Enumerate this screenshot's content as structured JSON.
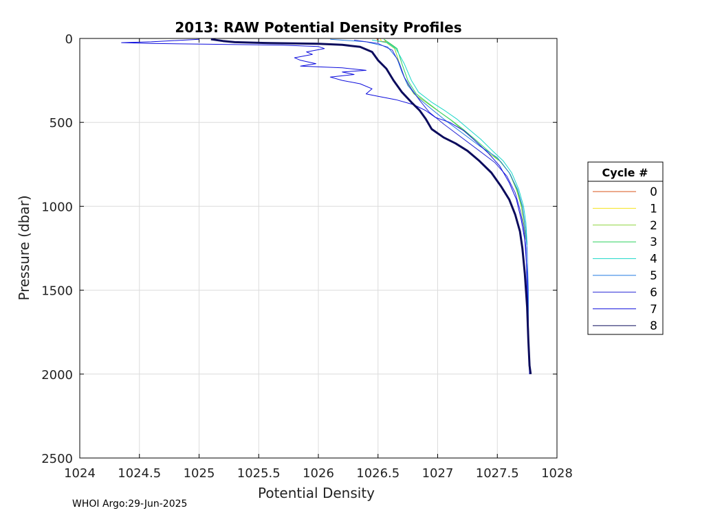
{
  "footer": "WHOI Argo:29-Jun-2025",
  "chart_data": {
    "type": "line",
    "title": "2013: RAW Potential Density Profiles",
    "xlabel": "Potential Density",
    "ylabel": "Pressure (dbar)",
    "xlim": [
      1024,
      1028
    ],
    "ylim": [
      0,
      2500
    ],
    "y_reversed": true,
    "grid": true,
    "xticks": [
      1024,
      1024.5,
      1025,
      1025.5,
      1026,
      1026.5,
      1027,
      1027.5,
      1028
    ],
    "xtick_labels": [
      "1024",
      "1024.5",
      "1025",
      "1025.5",
      "1026",
      "1026.5",
      "1027",
      "1027.5",
      "1028"
    ],
    "yticks": [
      0,
      500,
      1000,
      1500,
      2000,
      2500
    ],
    "ytick_labels": [
      "0",
      "500",
      "1000",
      "1500",
      "2000",
      "2500"
    ],
    "legend": {
      "title": "Cycle #",
      "placement": "right-outside"
    },
    "series": [
      {
        "name": "0",
        "color": "#d95319",
        "width": 1,
        "points": [
          [
            1026.49,
            2
          ],
          [
            1026.5,
            15
          ],
          [
            1026.56,
            20
          ],
          [
            1026.6,
            30
          ],
          [
            1026.64,
            50
          ]
        ]
      },
      {
        "name": "1",
        "color": "#f5e21a",
        "width": 1,
        "points": [
          [
            1026.52,
            2
          ],
          [
            1026.53,
            20
          ],
          [
            1026.6,
            30
          ],
          [
            1026.63,
            45
          ],
          [
            1026.65,
            80
          ]
        ]
      },
      {
        "name": "2",
        "color": "#8ed43c",
        "width": 1,
        "points": [
          [
            1026.55,
            5
          ],
          [
            1026.58,
            30
          ],
          [
            1026.64,
            60
          ],
          [
            1026.68,
            150
          ],
          [
            1026.73,
            250
          ],
          [
            1026.8,
            330
          ],
          [
            1026.9,
            380
          ],
          [
            1027.0,
            430
          ],
          [
            1027.1,
            480
          ],
          [
            1027.2,
            540
          ],
          [
            1027.3,
            600
          ],
          [
            1027.42,
            680
          ],
          [
            1027.52,
            730
          ],
          [
            1027.6,
            800
          ],
          [
            1027.66,
            900
          ],
          [
            1027.7,
            1000
          ],
          [
            1027.72,
            1100
          ],
          [
            1027.74,
            1200
          ]
        ]
      },
      {
        "name": "3",
        "color": "#2cd15f",
        "width": 1,
        "points": [
          [
            1026.55,
            5
          ],
          [
            1026.6,
            30
          ],
          [
            1026.66,
            60
          ],
          [
            1026.7,
            150
          ],
          [
            1026.75,
            250
          ],
          [
            1026.82,
            330
          ],
          [
            1026.92,
            385
          ],
          [
            1027.02,
            440
          ],
          [
            1027.12,
            490
          ],
          [
            1027.22,
            545
          ],
          [
            1027.32,
            605
          ],
          [
            1027.44,
            680
          ],
          [
            1027.53,
            735
          ],
          [
            1027.61,
            810
          ],
          [
            1027.67,
            910
          ],
          [
            1027.71,
            1010
          ],
          [
            1027.73,
            1110
          ],
          [
            1027.75,
            1220
          ]
        ]
      },
      {
        "name": "4",
        "color": "#19d6c8",
        "width": 1,
        "points": [
          [
            1026.45,
            10
          ],
          [
            1026.58,
            25
          ],
          [
            1026.65,
            60
          ],
          [
            1026.72,
            150
          ],
          [
            1026.78,
            250
          ],
          [
            1026.84,
            320
          ],
          [
            1026.95,
            380
          ],
          [
            1027.06,
            430
          ],
          [
            1027.16,
            480
          ],
          [
            1027.26,
            540
          ],
          [
            1027.36,
            600
          ],
          [
            1027.46,
            670
          ],
          [
            1027.55,
            730
          ],
          [
            1027.62,
            800
          ],
          [
            1027.68,
            900
          ],
          [
            1027.72,
            1000
          ],
          [
            1027.74,
            1100
          ],
          [
            1027.75,
            1230
          ]
        ]
      },
      {
        "name": "5",
        "color": "#1f78e0",
        "width": 1,
        "points": [
          [
            1026.1,
            5
          ],
          [
            1026.4,
            20
          ],
          [
            1026.58,
            50
          ],
          [
            1026.66,
            120
          ],
          [
            1026.7,
            200
          ],
          [
            1026.75,
            280
          ],
          [
            1026.83,
            350
          ],
          [
            1026.93,
            410
          ],
          [
            1027.05,
            480
          ],
          [
            1027.2,
            560
          ],
          [
            1027.35,
            640
          ],
          [
            1027.5,
            710
          ],
          [
            1027.6,
            800
          ],
          [
            1027.67,
            900
          ],
          [
            1027.71,
            1000
          ],
          [
            1027.73,
            1100
          ],
          [
            1027.75,
            1250
          ],
          [
            1027.76,
            1500
          ],
          [
            1027.76,
            1800
          ],
          [
            1027.77,
            2000
          ]
        ]
      },
      {
        "name": "6",
        "color": "#2828d6",
        "width": 1,
        "points": [
          [
            1026.3,
            10
          ],
          [
            1026.5,
            30
          ],
          [
            1026.62,
            70
          ],
          [
            1026.68,
            150
          ],
          [
            1026.72,
            230
          ],
          [
            1026.78,
            300
          ],
          [
            1026.85,
            370
          ],
          [
            1026.93,
            440
          ],
          [
            1027.05,
            510
          ],
          [
            1027.2,
            590
          ],
          [
            1027.35,
            670
          ],
          [
            1027.48,
            740
          ],
          [
            1027.58,
            820
          ],
          [
            1027.65,
            920
          ],
          [
            1027.69,
            1020
          ],
          [
            1027.72,
            1120
          ],
          [
            1027.74,
            1250
          ],
          [
            1027.75,
            1500
          ],
          [
            1027.76,
            1800
          ],
          [
            1027.77,
            2000
          ]
        ]
      },
      {
        "name": "7",
        "color": "#0a0adc",
        "width": 1,
        "points": [
          [
            1025.0,
            5
          ],
          [
            1024.6,
            20
          ],
          [
            1024.35,
            25
          ],
          [
            1024.6,
            30
          ],
          [
            1025.2,
            35
          ],
          [
            1025.7,
            40
          ],
          [
            1026.0,
            48
          ],
          [
            1026.05,
            60
          ],
          [
            1025.9,
            80
          ],
          [
            1025.95,
            95
          ],
          [
            1025.8,
            115
          ],
          [
            1025.85,
            130
          ],
          [
            1025.98,
            150
          ],
          [
            1025.85,
            165
          ],
          [
            1026.2,
            175
          ],
          [
            1026.4,
            190
          ],
          [
            1026.2,
            200
          ],
          [
            1026.3,
            215
          ],
          [
            1026.1,
            230
          ],
          [
            1026.2,
            250
          ],
          [
            1026.35,
            270
          ],
          [
            1026.45,
            300
          ],
          [
            1026.4,
            330
          ],
          [
            1026.5,
            345
          ],
          [
            1026.65,
            365
          ],
          [
            1026.8,
            395
          ],
          [
            1026.9,
            430
          ],
          [
            1026.98,
            470
          ],
          [
            1027.1,
            500
          ],
          [
            1027.22,
            550
          ],
          [
            1027.3,
            600
          ],
          [
            1027.42,
            680
          ],
          [
            1027.52,
            760
          ],
          [
            1027.6,
            860
          ],
          [
            1027.66,
            960
          ],
          [
            1027.7,
            1080
          ],
          [
            1027.73,
            1200
          ],
          [
            1027.75,
            1400
          ],
          [
            1027.76,
            1700
          ],
          [
            1027.77,
            2000
          ]
        ]
      },
      {
        "name": "8",
        "color": "#0b0b5c",
        "width": 3,
        "points": [
          [
            1025.1,
            5
          ],
          [
            1025.2,
            15
          ],
          [
            1025.3,
            22
          ],
          [
            1025.6,
            28
          ],
          [
            1026.0,
            32
          ],
          [
            1026.2,
            38
          ],
          [
            1026.35,
            50
          ],
          [
            1026.45,
            80
          ],
          [
            1026.5,
            130
          ],
          [
            1026.57,
            180
          ],
          [
            1026.63,
            250
          ],
          [
            1026.7,
            320
          ],
          [
            1026.78,
            380
          ],
          [
            1026.85,
            430
          ],
          [
            1026.9,
            480
          ],
          [
            1026.95,
            540
          ],
          [
            1027.05,
            590
          ],
          [
            1027.15,
            625
          ],
          [
            1027.25,
            670
          ],
          [
            1027.35,
            730
          ],
          [
            1027.45,
            800
          ],
          [
            1027.53,
            880
          ],
          [
            1027.6,
            960
          ],
          [
            1027.65,
            1050
          ],
          [
            1027.69,
            1150
          ],
          [
            1027.71,
            1250
          ],
          [
            1027.73,
            1400
          ],
          [
            1027.75,
            1600
          ],
          [
            1027.76,
            1800
          ],
          [
            1027.77,
            1950
          ],
          [
            1027.78,
            2000
          ]
        ]
      }
    ]
  }
}
